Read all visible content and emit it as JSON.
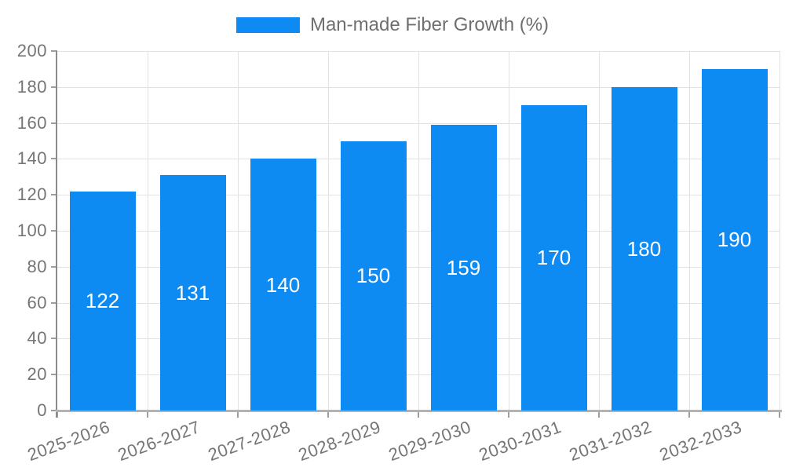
{
  "chart_data": {
    "type": "bar",
    "title": "",
    "xlabel": "",
    "ylabel": "",
    "categories": [
      "2025-2026",
      "2026-2027",
      "2027-2028",
      "2028-2029",
      "2029-2030",
      "2030-2031",
      "2031-2032",
      "2032-2033"
    ],
    "series": [
      {
        "name": "Man-made Fiber Growth (%)",
        "values": [
          122,
          131,
          140,
          150,
          159,
          170,
          180,
          190
        ],
        "color": "#0d8bf2"
      }
    ],
    "ylim": [
      0,
      200
    ],
    "ytick_step": 20,
    "yticks": [
      0,
      20,
      40,
      60,
      80,
      100,
      120,
      140,
      160,
      180,
      200
    ],
    "grid": true,
    "legend_position": "top-center",
    "value_labels": {
      "position": "inside-center",
      "color": "#ffffff"
    },
    "xtick_rotation_deg": -20
  },
  "style": {
    "bar_color": "#0d8bf2",
    "grid_color": "#e2e2e2",
    "y_axis_line_color": "#8b8b8b",
    "x_axis_line_color": "#b3b3b3",
    "tick_color": "#9e9e9e",
    "axis_label_color": "#757575",
    "legend_text_color": "#6f6f6f",
    "value_label_color": "#ffffff",
    "background": "#ffffff"
  }
}
